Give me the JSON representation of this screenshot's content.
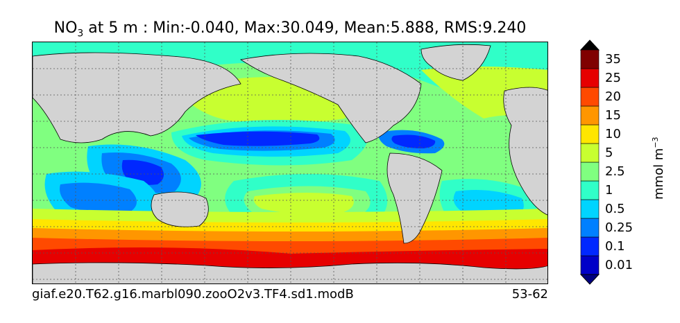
{
  "title": {
    "var_main": "NO",
    "var_sub": "3",
    "rest": " at 5 m : Min:-0.040, Max:30.049, Mean:5.888, RMS:9.240"
  },
  "footer": {
    "case": "giaf.e20.T62.g16.marbl090.zooO2v3.TF4.sd1.modB",
    "years": "53-62"
  },
  "colorbar": {
    "unit_main": "mmol m",
    "unit_sup": "−3",
    "levels": [
      {
        "label": "0.01",
        "color": "#0000c8"
      },
      {
        "label": "0.1",
        "color": "#0028ff"
      },
      {
        "label": "0.25",
        "color": "#0080ff"
      },
      {
        "label": "0.5",
        "color": "#00d4ff"
      },
      {
        "label": "1",
        "color": "#30ffc8"
      },
      {
        "label": "2.5",
        "color": "#80ff80"
      },
      {
        "label": "5",
        "color": "#c8ff30"
      },
      {
        "label": "10",
        "color": "#ffe600"
      },
      {
        "label": "15",
        "color": "#ff9600"
      },
      {
        "label": "20",
        "color": "#ff4a00"
      },
      {
        "label": "25",
        "color": "#e60000"
      },
      {
        "label": "35",
        "color": "#800000"
      }
    ],
    "under_color": "#000080",
    "over_color": "#000000"
  },
  "map": {
    "land_color": "#d3d3d3",
    "grid": true,
    "grid_style": "dotted"
  }
}
